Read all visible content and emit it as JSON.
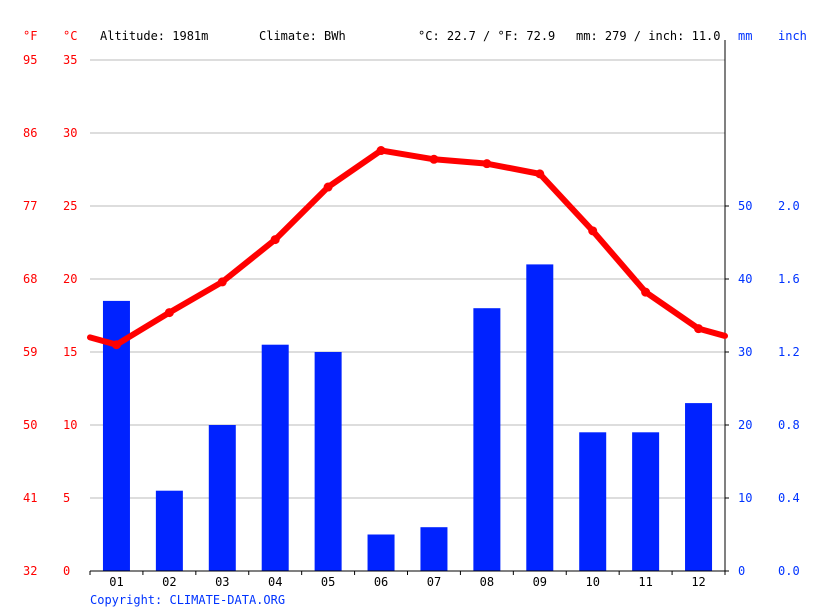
{
  "chart_data": {
    "type": "bar+line",
    "header": {
      "f_unit": "°F",
      "c_unit": "°C",
      "altitude": "Altitude: 1981m",
      "climate": "Climate: BWh",
      "temp_summary": "°C: 22.7 / °F: 72.9",
      "precip_summary": "mm: 279 / inch: 11.0",
      "mm_unit": "mm",
      "inch_unit": "inch"
    },
    "categories": [
      "01",
      "02",
      "03",
      "04",
      "05",
      "06",
      "07",
      "08",
      "09",
      "10",
      "11",
      "12"
    ],
    "series": [
      {
        "kind": "bar",
        "values": [
          37,
          11,
          20,
          31,
          30,
          5,
          6,
          36,
          42,
          19,
          19,
          23
        ]
      },
      {
        "kind": "line",
        "values": [
          15.5,
          17.7,
          19.8,
          22.7,
          26.3,
          28.8,
          28.2,
          27.9,
          27.2,
          23.3,
          19.1,
          16.6
        ]
      }
    ],
    "line_edge_values": [
      16.0,
      16.1
    ],
    "left_axis_c": {
      "ticks": [
        "0",
        "5",
        "10",
        "15",
        "20",
        "25",
        "30",
        "35"
      ],
      "ylim": [
        0,
        35
      ]
    },
    "left_axis_f": {
      "ticks": [
        "32",
        "41",
        "50",
        "59",
        "68",
        "77",
        "86",
        "95"
      ]
    },
    "right_axis_mm": {
      "ticks": [
        "0",
        "10",
        "20",
        "30",
        "40",
        "50"
      ],
      "ylim": [
        0,
        70
      ]
    },
    "right_axis_inch": {
      "ticks": [
        "0.0",
        "0.4",
        "0.8",
        "1.2",
        "1.6",
        "2.0"
      ]
    },
    "copyright": "Copyright: CLIMATE-DATA.ORG",
    "colors": {
      "temp": "#ff0000",
      "precip": "#0022ff",
      "precip_text": "#0033ff",
      "temp_text": "#ff0000",
      "grid": "#bbbbbb",
      "axis": "#000000",
      "text": "#000000"
    },
    "grid": true
  }
}
